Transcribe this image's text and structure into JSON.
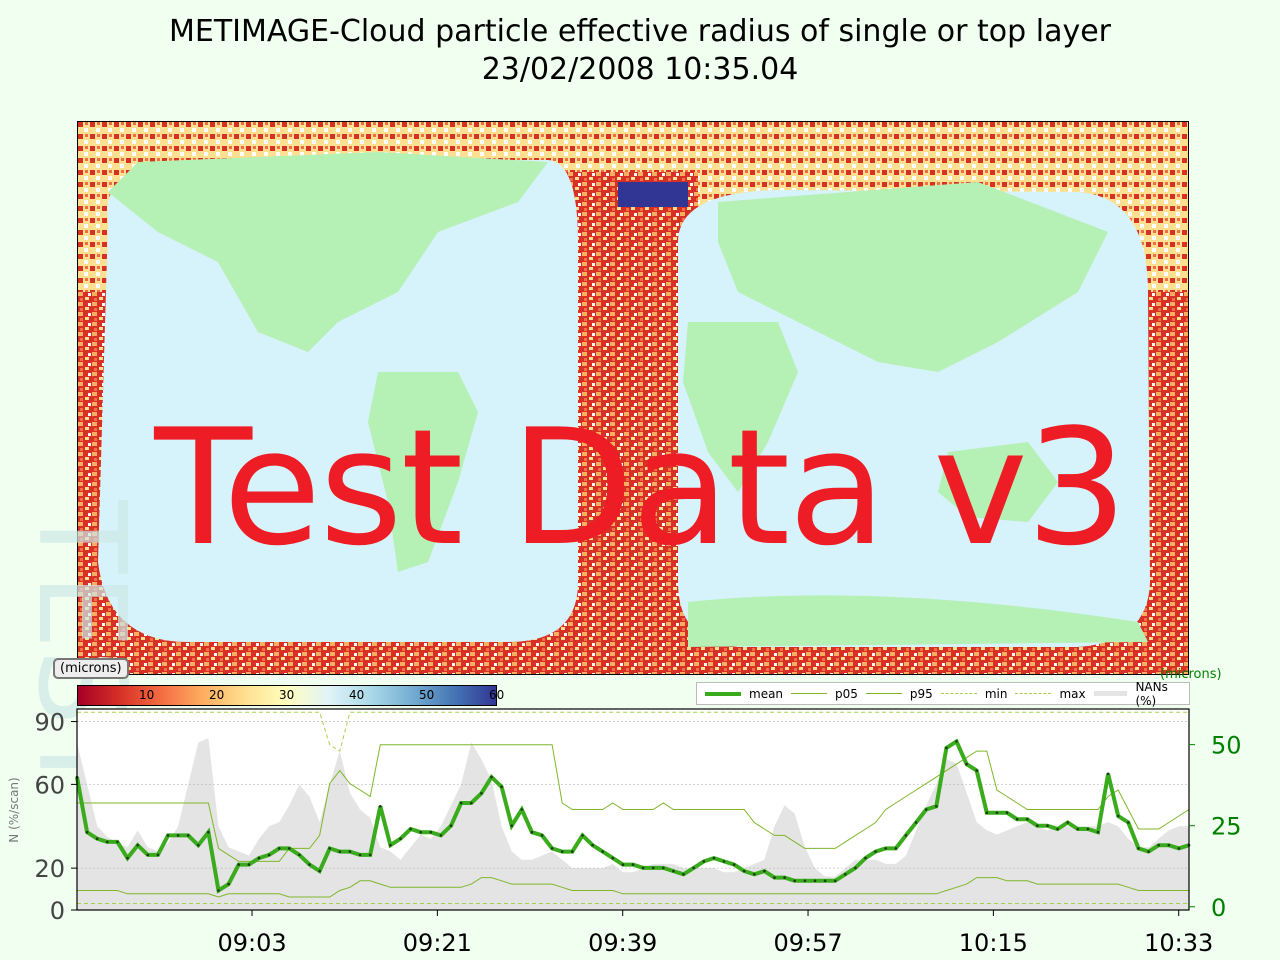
{
  "title": "METIMAGE-Cloud particle effective radius of single or top layer",
  "subtitle": "23/02/2008 10:35.04",
  "watermark": "Test Data v3",
  "side_watermark": "TEST",
  "colorbar": {
    "unit": "(microns)",
    "ticks": [
      "10",
      "20",
      "30",
      "40",
      "50",
      "60"
    ],
    "tick_values": [
      10,
      20,
      30,
      40,
      50,
      60
    ],
    "range": [
      0,
      60
    ],
    "colormap": [
      "#a50026",
      "#d73027",
      "#f46d43",
      "#fdae61",
      "#fee090",
      "#ffffbf",
      "#e0f3f8",
      "#abd9e9",
      "#74add1",
      "#4575b4",
      "#313695"
    ]
  },
  "right_axis_unit": "(microns)",
  "colors": {
    "mean": "#3aab1c",
    "p05": "#7fb62a",
    "p95": "#7fb62a",
    "min": "#a8d04a",
    "max": "#a8d04a",
    "nans": "#e4e4e4",
    "land": "#b5f0b5",
    "ocean": "#d6f2fa",
    "right_axis": "#008000"
  },
  "chart_data": {
    "type": "line",
    "x_ticks": [
      "09:03",
      "09:21",
      "09:39",
      "09:57",
      "10:15",
      "10:33"
    ],
    "x_tick_minutes": [
      543,
      561,
      579,
      597,
      615,
      633
    ],
    "x_range_minutes": [
      526,
      634
    ],
    "left_axis": {
      "label": "N (%/scan)",
      "ticks": [
        "0",
        "20",
        "60",
        "90"
      ],
      "tick_values": [
        0,
        20,
        60,
        90
      ],
      "range": [
        0,
        96
      ]
    },
    "right_axis": {
      "label": "(microns)",
      "ticks": [
        "0",
        "25",
        "50"
      ],
      "tick_values": [
        0,
        25,
        50
      ],
      "range": [
        -1,
        61
      ]
    },
    "legend": [
      "mean",
      "p05",
      "p95",
      "min",
      "max",
      "NANs (%)"
    ],
    "series": [
      {
        "name": "mean",
        "axis": "right",
        "values": [
          40,
          23,
          21,
          20,
          20,
          15,
          19,
          16,
          16,
          22,
          22,
          22,
          19,
          23,
          5,
          7,
          13,
          13,
          15,
          16,
          18,
          18,
          16,
          13,
          11,
          18,
          17,
          17,
          16,
          16,
          31,
          19,
          21,
          24,
          23,
          23,
          22,
          25,
          32,
          32,
          35,
          40,
          37,
          25,
          30,
          23,
          22,
          18,
          17,
          17,
          22,
          19,
          17,
          15,
          13,
          13,
          12,
          12,
          12,
          11,
          10,
          12,
          14,
          15,
          14,
          13,
          11,
          10,
          11,
          9,
          9,
          8,
          8,
          8,
          8,
          8,
          10,
          12,
          15,
          17,
          18,
          18,
          22,
          26,
          30,
          31,
          49,
          51,
          44,
          42,
          29,
          29,
          29,
          27,
          27,
          25,
          25,
          24,
          26,
          24,
          24,
          23,
          41,
          28,
          26,
          18,
          17,
          19,
          19,
          18,
          19
        ]
      },
      {
        "name": "p05",
        "axis": "right",
        "values": [
          5,
          5,
          5,
          5,
          5,
          4,
          4,
          4,
          4,
          4,
          4,
          4,
          4,
          4,
          3,
          4,
          4,
          4,
          4,
          4,
          4,
          3,
          3,
          3,
          3,
          3,
          5,
          6,
          8,
          8,
          7,
          6,
          6,
          6,
          6,
          6,
          6,
          6,
          6,
          7,
          9,
          9,
          8,
          7,
          7,
          7,
          7,
          7,
          6,
          5,
          5,
          5,
          5,
          5,
          4,
          4,
          4,
          4,
          4,
          4,
          4,
          4,
          4,
          4,
          4,
          4,
          4,
          4,
          4,
          4,
          4,
          4,
          4,
          4,
          4,
          4,
          4,
          4,
          4,
          4,
          4,
          4,
          4,
          4,
          4,
          4,
          5,
          6,
          7,
          9,
          9,
          9,
          8,
          8,
          8,
          7,
          7,
          7,
          7,
          7,
          7,
          7,
          7,
          7,
          6,
          5,
          5,
          5,
          5,
          5,
          5
        ]
      },
      {
        "name": "p95",
        "axis": "right",
        "values": [
          32,
          32,
          32,
          32,
          32,
          32,
          32,
          32,
          32,
          32,
          32,
          32,
          32,
          32,
          18,
          16,
          14,
          14,
          14,
          14,
          14,
          18,
          18,
          18,
          22,
          38,
          42,
          38,
          36,
          34,
          50,
          50,
          50,
          50,
          50,
          50,
          50,
          50,
          50,
          50,
          50,
          50,
          50,
          50,
          50,
          50,
          50,
          50,
          32,
          30,
          30,
          30,
          30,
          32,
          30,
          30,
          30,
          30,
          32,
          30,
          30,
          30,
          30,
          30,
          30,
          30,
          30,
          26,
          24,
          22,
          22,
          20,
          18,
          18,
          18,
          18,
          20,
          22,
          24,
          26,
          30,
          32,
          34,
          36,
          38,
          40,
          42,
          44,
          46,
          48,
          48,
          36,
          34,
          32,
          30,
          30,
          30,
          30,
          30,
          30,
          30,
          30,
          34,
          36,
          30,
          24,
          24,
          24,
          26,
          28,
          30
        ]
      },
      {
        "name": "min",
        "axis": "right",
        "values": [
          1,
          1,
          1,
          1,
          1,
          1,
          1,
          1,
          1,
          1,
          1,
          1,
          1,
          1,
          1,
          1,
          1,
          1,
          1,
          1,
          1,
          1,
          1,
          1,
          1,
          1,
          1,
          1,
          1,
          1,
          1,
          1,
          1,
          1,
          1,
          1,
          1,
          1,
          1,
          1,
          1,
          1,
          1,
          1,
          1,
          1,
          1,
          1,
          1,
          1,
          1,
          1,
          1,
          1,
          1,
          1,
          1,
          1,
          1,
          1,
          1,
          1,
          1,
          1,
          1,
          1,
          1,
          1,
          1,
          1,
          1,
          1,
          1,
          1,
          1,
          1,
          1,
          1,
          1,
          1,
          1,
          1,
          1,
          1,
          1,
          1,
          1,
          1,
          1,
          1,
          1,
          1,
          1,
          1,
          1,
          1,
          1,
          1,
          1,
          1,
          1,
          1,
          1,
          1,
          1,
          1,
          1,
          1,
          1,
          1,
          1
        ]
      },
      {
        "name": "max",
        "axis": "right",
        "values": [
          60,
          60,
          60,
          60,
          60,
          60,
          60,
          60,
          60,
          60,
          60,
          60,
          60,
          60,
          60,
          60,
          60,
          60,
          60,
          60,
          60,
          60,
          60,
          60,
          60,
          50,
          48,
          60,
          60,
          60,
          60,
          60,
          60,
          60,
          60,
          60,
          60,
          60,
          60,
          60,
          60,
          60,
          60,
          60,
          60,
          60,
          60,
          60,
          60,
          60,
          60,
          60,
          60,
          60,
          60,
          60,
          60,
          60,
          60,
          60,
          60,
          60,
          60,
          60,
          60,
          60,
          60,
          60,
          60,
          60,
          60,
          60,
          60,
          60,
          60,
          60,
          60,
          60,
          60,
          60,
          60,
          60,
          60,
          60,
          60,
          60,
          60,
          60,
          60,
          60,
          60,
          60,
          60,
          60,
          60,
          60,
          60,
          60,
          60,
          60,
          60,
          60,
          60,
          60,
          60,
          60,
          60,
          60,
          60,
          60,
          60
        ]
      },
      {
        "name": "NANs (%)",
        "axis": "left",
        "values": [
          80,
          60,
          40,
          35,
          32,
          30,
          38,
          30,
          28,
          32,
          40,
          60,
          80,
          82,
          40,
          30,
          28,
          26,
          34,
          40,
          42,
          50,
          60,
          54,
          42,
          60,
          76,
          56,
          48,
          44,
          30,
          28,
          24,
          30,
          36,
          34,
          40,
          50,
          60,
          80,
          72,
          62,
          40,
          28,
          24,
          24,
          26,
          28,
          24,
          20,
          20,
          20,
          20,
          22,
          18,
          18,
          20,
          22,
          22,
          22,
          20,
          20,
          20,
          20,
          18,
          18,
          20,
          22,
          24,
          40,
          50,
          46,
          30,
          20,
          16,
          16,
          20,
          24,
          24,
          24,
          22,
          22,
          26,
          38,
          50,
          60,
          72,
          70,
          56,
          42,
          38,
          36,
          38,
          40,
          42,
          40,
          38,
          40,
          40,
          40,
          40,
          40,
          42,
          40,
          34,
          30,
          30,
          34,
          38,
          40,
          40
        ]
      }
    ]
  }
}
